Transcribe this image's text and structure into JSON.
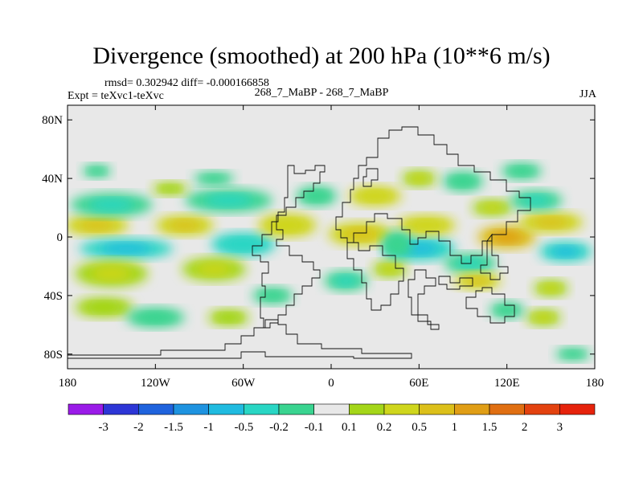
{
  "chart_data": {
    "type": "heatmap",
    "title": "Divergence (smoothed) at 200 hPa (10**6 m/s)",
    "stats_text": "rmsd= 0.302942 diff= -0.000166858",
    "experiment": "Expt = teXvc1-teXvc",
    "cases": "268_7_MaBP - 268_7_MaBP",
    "season": "JJA",
    "x_range": [
      -180,
      180
    ],
    "y_range": [
      -90,
      90
    ],
    "x_ticks": [
      {
        "value": -180,
        "label": "180"
      },
      {
        "value": -120,
        "label": "120W"
      },
      {
        "value": -60,
        "label": "60W"
      },
      {
        "value": 0,
        "label": "0"
      },
      {
        "value": 60,
        "label": "60E"
      },
      {
        "value": 120,
        "label": "120E"
      },
      {
        "value": 180,
        "label": "180"
      }
    ],
    "y_ticks": [
      {
        "value": 80,
        "label": "80N"
      },
      {
        "value": 40,
        "label": "40N"
      },
      {
        "value": 0,
        "label": "0"
      },
      {
        "value": -40,
        "label": "40S"
      },
      {
        "value": -80,
        "label": "80S"
      }
    ],
    "colorbar": {
      "colors": [
        "#9a1be8",
        "#2d36d6",
        "#1f63dd",
        "#1e93e0",
        "#20bbe0",
        "#29d6c4",
        "#3ad490",
        "#e8e8e8",
        "#a4d619",
        "#cfd61d",
        "#dcc01a",
        "#e09e16",
        "#e06f12",
        "#e3420f",
        "#e6230c"
      ],
      "levels": [
        -3,
        -2,
        -1.5,
        -1,
        -0.5,
        -0.2,
        -0.1,
        0.1,
        0.2,
        0.5,
        1,
        1.5,
        2,
        3
      ],
      "labels": [
        "-3",
        "-2",
        "-1.5",
        "-1",
        "-0.5",
        "-0.2",
        "-0.1",
        "0.1",
        "0.2",
        "0.5",
        "1",
        "1.5",
        "2",
        "3"
      ]
    },
    "features": [
      {
        "lon": -160,
        "lat": 8,
        "rlon": 22,
        "rlat": 6,
        "value": 0.8
      },
      {
        "lon": -100,
        "lat": 8,
        "rlon": 20,
        "rlat": 6,
        "value": 0.6
      },
      {
        "lon": -150,
        "lat": 22,
        "rlon": 28,
        "rlat": 7,
        "value": -0.3
      },
      {
        "lon": -70,
        "lat": 25,
        "rlon": 30,
        "rlat": 7,
        "value": -0.3
      },
      {
        "lon": -140,
        "lat": -8,
        "rlon": 32,
        "rlat": 6,
        "value": -0.7
      },
      {
        "lon": -60,
        "lat": -5,
        "rlon": 22,
        "rlat": 7,
        "value": -0.5
      },
      {
        "lon": -150,
        "lat": -25,
        "rlon": 25,
        "rlat": 8,
        "value": 0.25
      },
      {
        "lon": -80,
        "lat": -22,
        "rlon": 22,
        "rlat": 7,
        "value": 0.3
      },
      {
        "lon": -155,
        "lat": -48,
        "rlon": 20,
        "rlat": 6,
        "value": 0.15
      },
      {
        "lon": -120,
        "lat": -55,
        "rlon": 20,
        "rlat": 6,
        "value": -0.15
      },
      {
        "lon": -160,
        "lat": 45,
        "rlon": 10,
        "rlat": 4,
        "value": -0.15
      },
      {
        "lon": -80,
        "lat": 40,
        "rlon": 14,
        "rlat": 4,
        "value": -0.15
      },
      {
        "lon": -110,
        "lat": 33,
        "rlon": 12,
        "rlat": 4,
        "value": 0.15
      },
      {
        "lon": -30,
        "lat": 8,
        "rlon": 20,
        "rlat": 7,
        "value": 0.4
      },
      {
        "lon": -10,
        "lat": 28,
        "rlon": 14,
        "rlat": 6,
        "value": -0.2
      },
      {
        "lon": 30,
        "lat": 28,
        "rlon": 18,
        "rlat": 6,
        "value": 0.4
      },
      {
        "lon": 20,
        "lat": 2,
        "rlon": 22,
        "rlat": 7,
        "value": 0.5
      },
      {
        "lon": 60,
        "lat": -8,
        "rlon": 25,
        "rlat": 7,
        "value": -0.6
      },
      {
        "lon": 65,
        "lat": 8,
        "rlon": 20,
        "rlat": 6,
        "value": 0.4
      },
      {
        "lon": 120,
        "lat": 0,
        "rlon": 20,
        "rlat": 7,
        "value": 1.4
      },
      {
        "lon": 150,
        "lat": 10,
        "rlon": 22,
        "rlat": 6,
        "value": 0.8
      },
      {
        "lon": 160,
        "lat": -10,
        "rlon": 18,
        "rlat": 6,
        "value": -0.6
      },
      {
        "lon": 95,
        "lat": -18,
        "rlon": 18,
        "rlat": 6,
        "value": -0.4
      },
      {
        "lon": 100,
        "lat": -30,
        "rlon": 16,
        "rlat": 5,
        "value": 0.5
      },
      {
        "lon": 110,
        "lat": 20,
        "rlon": 14,
        "rlat": 5,
        "value": 0.3
      },
      {
        "lon": 140,
        "lat": 25,
        "rlon": 18,
        "rlat": 6,
        "value": -0.3
      },
      {
        "lon": 90,
        "lat": 38,
        "rlon": 14,
        "rlat": 6,
        "value": -0.2
      },
      {
        "lon": 60,
        "lat": 40,
        "rlon": 12,
        "rlat": 5,
        "value": 0.2
      },
      {
        "lon": 130,
        "lat": 45,
        "rlon": 14,
        "rlat": 5,
        "value": -0.15
      },
      {
        "lon": 10,
        "lat": -30,
        "rlon": 15,
        "rlat": 6,
        "value": -0.25
      },
      {
        "lon": 40,
        "lat": -22,
        "rlon": 12,
        "rlat": 5,
        "value": 0.3
      },
      {
        "lon": 150,
        "lat": -35,
        "rlon": 12,
        "rlat": 5,
        "value": 0.2
      },
      {
        "lon": 145,
        "lat": -55,
        "rlon": 12,
        "rlat": 5,
        "value": 0.2
      },
      {
        "lon": 120,
        "lat": -50,
        "rlon": 12,
        "rlat": 5,
        "value": -0.15
      },
      {
        "lon": -70,
        "lat": -55,
        "rlon": 14,
        "rlat": 5,
        "value": 0.15
      },
      {
        "lon": -40,
        "lat": -40,
        "rlon": 14,
        "rlat": 5,
        "value": -0.15
      },
      {
        "lon": 165,
        "lat": -80,
        "rlon": 12,
        "rlat": 4,
        "value": -0.15
      },
      {
        "lon": 45,
        "lat": -5,
        "rlon": 10,
        "rlat": 8,
        "value": -0.2
      }
    ]
  }
}
